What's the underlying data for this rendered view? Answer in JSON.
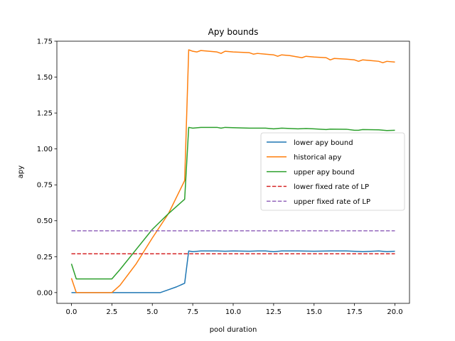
{
  "chart_data": {
    "type": "line",
    "title": "Apy bounds",
    "xlabel": "pool duration",
    "ylabel": "apy",
    "xlim": [
      -0.9,
      20.9
    ],
    "ylim": [
      -0.075,
      1.75
    ],
    "xticks": [
      "0.0",
      "2.5",
      "5.0",
      "7.5",
      "10.0",
      "12.5",
      "15.0",
      "17.5",
      "20.0"
    ],
    "xtick_values": [
      0,
      2.5,
      5,
      7.5,
      10,
      12.5,
      15,
      17.5,
      20
    ],
    "yticks": [
      "0.00",
      "0.25",
      "0.50",
      "0.75",
      "1.00",
      "1.25",
      "1.50",
      "1.75"
    ],
    "ytick_values": [
      0,
      0.25,
      0.5,
      0.75,
      1.0,
      1.25,
      1.5,
      1.75
    ],
    "grid": false,
    "legend_position": "center-right",
    "series": [
      {
        "name": "lower apy bound",
        "color": "#1f77b4",
        "dash": "solid",
        "x": [
          0,
          0.3,
          2.5,
          5.0,
          5.5,
          6.0,
          6.5,
          7.0,
          7.25,
          7.5,
          8.0,
          9.0,
          9.5,
          10.0,
          11.0,
          11.5,
          12.0,
          12.5,
          13.0,
          14.0,
          15.0,
          16.0,
          17.0,
          18.0,
          19.0,
          19.5,
          20.0
        ],
        "y": [
          0.0,
          0.0,
          0.0,
          0.0,
          0.0,
          0.02,
          0.04,
          0.065,
          0.29,
          0.285,
          0.29,
          0.29,
          0.288,
          0.29,
          0.288,
          0.29,
          0.29,
          0.285,
          0.29,
          0.29,
          0.288,
          0.29,
          0.29,
          0.285,
          0.29,
          0.285,
          0.288
        ]
      },
      {
        "name": "historical apy",
        "color": "#ff7f0e",
        "dash": "solid",
        "x": [
          0,
          0.3,
          2.5,
          3.0,
          4.0,
          5.0,
          6.0,
          7.0,
          7.25,
          7.5,
          7.75,
          8.0,
          9.0,
          9.25,
          9.5,
          10.0,
          11.0,
          11.25,
          11.5,
          12.0,
          12.5,
          12.75,
          13.0,
          13.5,
          14.0,
          14.25,
          14.5,
          15.0,
          15.75,
          16.0,
          16.25,
          17.0,
          17.5,
          17.75,
          18.0,
          18.5,
          19.0,
          19.25,
          19.5,
          20.0
        ],
        "y": [
          0.1,
          0.0,
          0.0,
          0.05,
          0.2,
          0.38,
          0.55,
          0.78,
          1.69,
          1.68,
          1.675,
          1.685,
          1.675,
          1.665,
          1.68,
          1.675,
          1.67,
          1.66,
          1.665,
          1.66,
          1.655,
          1.645,
          1.655,
          1.65,
          1.64,
          1.635,
          1.645,
          1.64,
          1.635,
          1.62,
          1.63,
          1.625,
          1.62,
          1.61,
          1.62,
          1.615,
          1.61,
          1.6,
          1.61,
          1.605
        ]
      },
      {
        "name": "upper apy bound",
        "color": "#2ca02c",
        "dash": "solid",
        "x": [
          0,
          0.3,
          2.5,
          3.0,
          4.0,
          5.0,
          6.0,
          7.0,
          7.25,
          7.5,
          8.0,
          9.0,
          9.25,
          9.5,
          10.0,
          11.0,
          11.5,
          12.0,
          12.5,
          13.0,
          14.0,
          14.5,
          15.0,
          15.75,
          16.0,
          17.0,
          17.5,
          17.75,
          18.0,
          19.0,
          19.5,
          20.0
        ],
        "y": [
          0.2,
          0.095,
          0.095,
          0.16,
          0.3,
          0.44,
          0.55,
          0.65,
          1.15,
          1.145,
          1.15,
          1.15,
          1.145,
          1.15,
          1.148,
          1.145,
          1.145,
          1.145,
          1.14,
          1.145,
          1.14,
          1.142,
          1.14,
          1.135,
          1.138,
          1.137,
          1.13,
          1.13,
          1.135,
          1.133,
          1.128,
          1.13
        ]
      },
      {
        "name": "lower fixed rate of LP",
        "color": "#d62728",
        "dash": "dashed",
        "x": [
          0,
          20
        ],
        "y": [
          0.27,
          0.27
        ]
      },
      {
        "name": "upper fixed rate of LP",
        "color": "#9467bd",
        "dash": "dashed",
        "x": [
          0,
          20
        ],
        "y": [
          0.43,
          0.43
        ]
      }
    ]
  }
}
